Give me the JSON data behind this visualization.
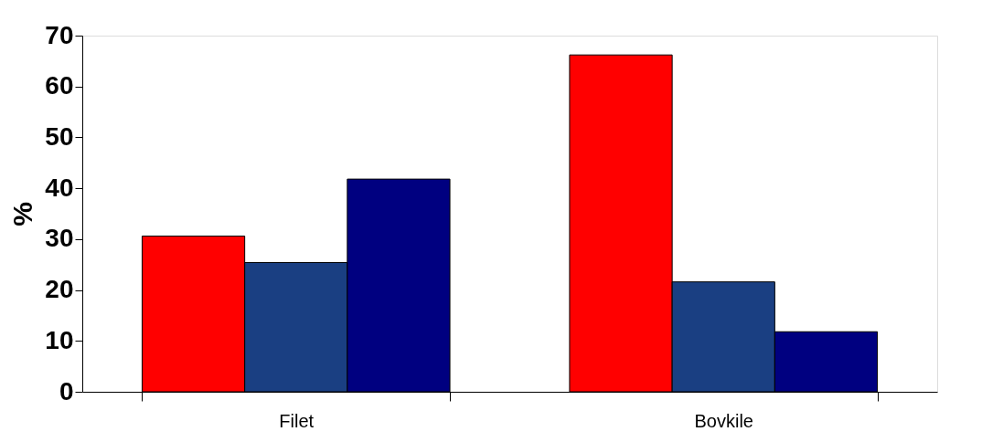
{
  "chart_data": {
    "type": "bar",
    "ylabel": "%",
    "categories": [
      "Filet",
      "Bovkile"
    ],
    "series": [
      {
        "color": "#ff0000",
        "values": [
          30.6,
          66.2
        ]
      },
      {
        "color": "#1a3f82",
        "values": [
          25.4,
          21.6
        ]
      },
      {
        "color": "#000080",
        "values": [
          41.8,
          11.8
        ]
      }
    ],
    "ylim": [
      0,
      70
    ],
    "yticks": [
      0,
      10,
      20,
      30,
      40,
      50,
      60,
      70
    ],
    "grid": false,
    "legend": false
  }
}
